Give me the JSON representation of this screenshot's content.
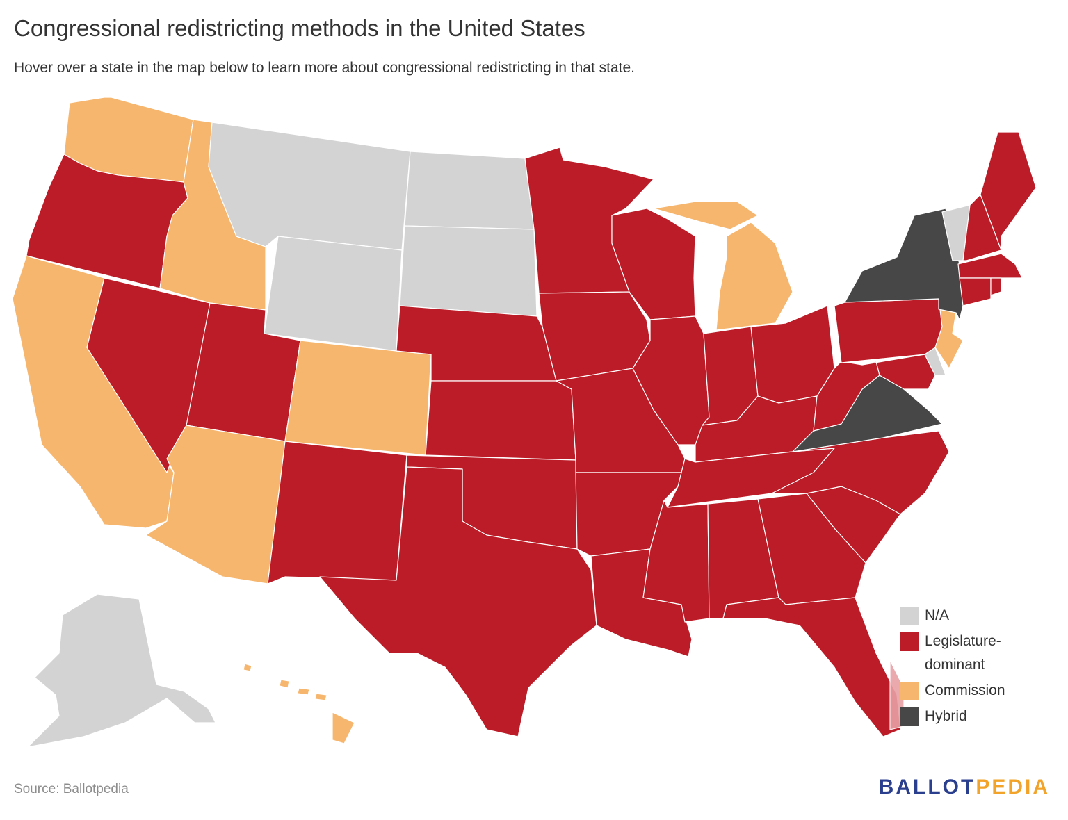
{
  "title": "Congressional redistricting methods in the United States",
  "subtitle": "Hover over a state in the map below to learn more about congressional redistricting in that state.",
  "colors": {
    "na": "#d3d3d3",
    "legislature": "#bc1c27",
    "commission": "#f6b66e",
    "hybrid": "#474747",
    "hover_highlight": "#e8a0a4"
  },
  "legend": [
    {
      "key": "na",
      "label": "N/A"
    },
    {
      "key": "legislature",
      "label": "Legislature-dominant"
    },
    {
      "key": "commission",
      "label": "Commission"
    },
    {
      "key": "hybrid",
      "label": "Hybrid"
    }
  ],
  "states": {
    "WA": "commission",
    "OR": "legislature",
    "CA": "commission",
    "NV": "legislature",
    "ID": "commission",
    "MT": "na",
    "WY": "na",
    "UT": "legislature",
    "AZ": "commission",
    "CO": "commission",
    "NM": "legislature",
    "ND": "na",
    "SD": "na",
    "NE": "legislature",
    "KS": "legislature",
    "OK": "legislature",
    "TX": "legislature",
    "MN": "legislature",
    "IA": "legislature",
    "MO": "legislature",
    "AR": "legislature",
    "LA": "legislature",
    "WI": "legislature",
    "IL": "legislature",
    "MI": "commission",
    "IN": "legislature",
    "OH": "legislature",
    "KY": "legislature",
    "TN": "legislature",
    "MS": "legislature",
    "AL": "legislature",
    "GA": "legislature",
    "FL": "legislature",
    "SC": "legislature",
    "NC": "legislature",
    "VA": "hybrid",
    "WV": "legislature",
    "MD": "legislature",
    "DE": "na",
    "NJ": "commission",
    "PA": "legislature",
    "NY": "hybrid",
    "VT": "na",
    "NH": "legislature",
    "ME": "legislature",
    "MA": "legislature",
    "CT": "legislature",
    "RI": "legislature",
    "AK": "na",
    "HI": "commission"
  },
  "source": "Source: Ballotpedia",
  "logo": {
    "part1": "BALLOT",
    "part2": "PEDIA"
  }
}
